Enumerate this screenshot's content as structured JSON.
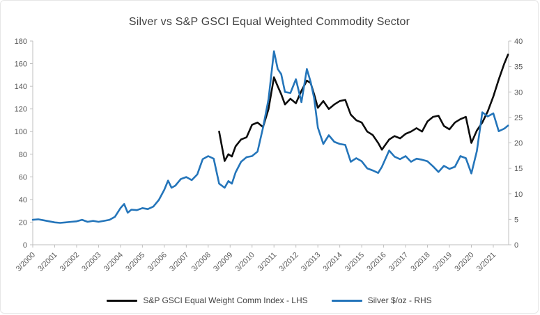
{
  "title": "Silver vs S&P GSCI Equal Weighted Commodity Sector",
  "chart_data": {
    "type": "line",
    "title": "Silver vs S&P GSCI Equal Weighted Commodity Sector",
    "grid": false,
    "legend_position": "bottom",
    "x_range": [
      2000.25,
      2021.95
    ],
    "left_axis": {
      "min": 0,
      "max": 180,
      "step": 20
    },
    "right_axis": {
      "min": 0,
      "max": 40,
      "step": 5
    },
    "x_tick_labels": [
      "3/2000",
      "3/2001",
      "3/2002",
      "3/2003",
      "3/2004",
      "3/2005",
      "3/2006",
      "3/2007",
      "3/2008",
      "3/2009",
      "3/2010",
      "3/2011",
      "3/2012",
      "3/2013",
      "3/2014",
      "3/2015",
      "3/2016",
      "3/2017",
      "3/2018",
      "3/2019",
      "3/2020",
      "3/2021"
    ],
    "axis_color": "#bfbfbf",
    "tick_label_color": "#595959",
    "series": [
      {
        "name": "S&P GSCI Equal Weight Comm Index - LHS",
        "axis": "left",
        "color": "#0d0d0d",
        "x": [
          2008.75,
          2009.0,
          2009.17,
          2009.33,
          2009.5,
          2009.75,
          2010.0,
          2010.25,
          2010.5,
          2010.75,
          2011.0,
          2011.25,
          2011.42,
          2011.58,
          2011.75,
          2012.0,
          2012.25,
          2012.5,
          2012.75,
          2012.92,
          2013.08,
          2013.25,
          2013.5,
          2013.75,
          2014.0,
          2014.25,
          2014.5,
          2014.75,
          2015.0,
          2015.25,
          2015.5,
          2015.75,
          2016.0,
          2016.17,
          2016.5,
          2016.75,
          2017.0,
          2017.25,
          2017.5,
          2017.75,
          2018.0,
          2018.25,
          2018.5,
          2018.75,
          2019.0,
          2019.25,
          2019.5,
          2019.75,
          2020.0,
          2020.25,
          2020.5,
          2020.75,
          2021.0,
          2021.25,
          2021.5,
          2021.75,
          2021.92
        ],
        "values": [
          100,
          74,
          80,
          78,
          87,
          93,
          95,
          106,
          108,
          104,
          120,
          148,
          140,
          133,
          124,
          129,
          125,
          136,
          145,
          143,
          133,
          121,
          127,
          120,
          124,
          127,
          128,
          115,
          110,
          108,
          100,
          97,
          90,
          84,
          93,
          96,
          94,
          98,
          100,
          103,
          100,
          109,
          113,
          114,
          105,
          102,
          108,
          111,
          113,
          90,
          101,
          108,
          118,
          131,
          146,
          160,
          168
        ]
      },
      {
        "name": "Silver $/oz - RHS",
        "axis": "right",
        "color": "#2475ba",
        "x": [
          2000.25,
          2000.5,
          2000.75,
          2001.0,
          2001.25,
          2001.5,
          2001.75,
          2002.0,
          2002.25,
          2002.5,
          2002.75,
          2003.0,
          2003.25,
          2003.5,
          2003.75,
          2004.0,
          2004.25,
          2004.42,
          2004.58,
          2004.75,
          2005.0,
          2005.25,
          2005.5,
          2005.75,
          2006.0,
          2006.25,
          2006.42,
          2006.58,
          2006.75,
          2007.0,
          2007.25,
          2007.5,
          2007.75,
          2008.0,
          2008.25,
          2008.5,
          2008.75,
          2009.0,
          2009.17,
          2009.33,
          2009.5,
          2009.75,
          2010.0,
          2010.25,
          2010.5,
          2010.75,
          2011.0,
          2011.25,
          2011.42,
          2011.58,
          2011.75,
          2012.0,
          2012.25,
          2012.5,
          2012.75,
          2012.92,
          2013.08,
          2013.25,
          2013.5,
          2013.75,
          2014.0,
          2014.25,
          2014.5,
          2014.75,
          2015.0,
          2015.25,
          2015.5,
          2015.75,
          2016.0,
          2016.17,
          2016.5,
          2016.75,
          2017.0,
          2017.25,
          2017.5,
          2017.75,
          2018.0,
          2018.25,
          2018.5,
          2018.75,
          2019.0,
          2019.25,
          2019.5,
          2019.75,
          2020.0,
          2020.25,
          2020.5,
          2020.75,
          2021.0,
          2021.25,
          2021.5,
          2021.75,
          2021.92
        ],
        "values": [
          4.9,
          5.0,
          4.8,
          4.6,
          4.4,
          4.3,
          4.4,
          4.5,
          4.6,
          4.9,
          4.5,
          4.7,
          4.5,
          4.7,
          4.9,
          5.5,
          7.2,
          8.0,
          6.3,
          6.9,
          6.8,
          7.2,
          7.0,
          7.5,
          8.8,
          10.8,
          12.6,
          11.2,
          11.6,
          12.9,
          13.3,
          12.7,
          13.8,
          16.8,
          17.4,
          16.9,
          12.0,
          11.2,
          12.5,
          12.0,
          14.2,
          16.3,
          17.2,
          17.4,
          18.3,
          23.0,
          28.6,
          38.0,
          34.5,
          33.5,
          30.0,
          29.8,
          32.5,
          28.0,
          34.5,
          32.0,
          28.8,
          23.0,
          19.8,
          21.5,
          20.2,
          19.8,
          19.6,
          16.3,
          17.0,
          16.4,
          15.0,
          14.6,
          14.1,
          15.3,
          18.5,
          17.3,
          16.8,
          17.4,
          16.3,
          16.9,
          16.7,
          16.4,
          15.4,
          14.3,
          15.5,
          14.9,
          15.3,
          17.4,
          17.0,
          14.0,
          18.4,
          26.0,
          25.2,
          25.8,
          22.3,
          22.8,
          23.4
        ]
      }
    ]
  }
}
